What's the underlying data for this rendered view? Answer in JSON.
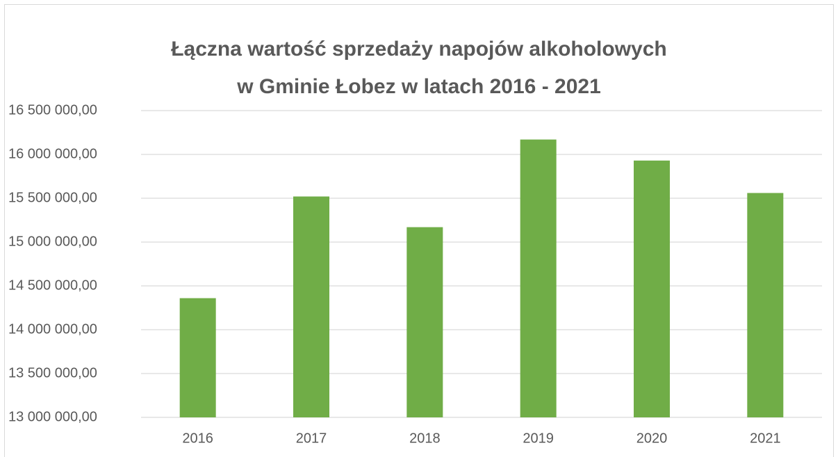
{
  "chart_data": {
    "type": "bar",
    "title": [
      "Łączna wartość sprzedaży napojów alkoholowych",
      "w Gminie Łobez w latach 2016 - 2021"
    ],
    "categories": [
      "2016",
      "2017",
      "2018",
      "2019",
      "2020",
      "2021"
    ],
    "values": [
      14360000,
      15520000,
      15170000,
      16170000,
      15930000,
      15560000
    ],
    "color": "#70ad47",
    "ylim": [
      13000000,
      16500000
    ],
    "yticks": [
      {
        "value": 13000000,
        "label": "13 000 000,00"
      },
      {
        "value": 13500000,
        "label": "13 500 000,00"
      },
      {
        "value": 14000000,
        "label": "14 000 000,00"
      },
      {
        "value": 14500000,
        "label": "14 500 000,00"
      },
      {
        "value": 15000000,
        "label": "15 000 000,00"
      },
      {
        "value": 15500000,
        "label": "15 500 000,00"
      },
      {
        "value": 16000000,
        "label": "16 000 000,00"
      },
      {
        "value": 16500000,
        "label": "16 500 000,00"
      }
    ],
    "grid": true
  }
}
